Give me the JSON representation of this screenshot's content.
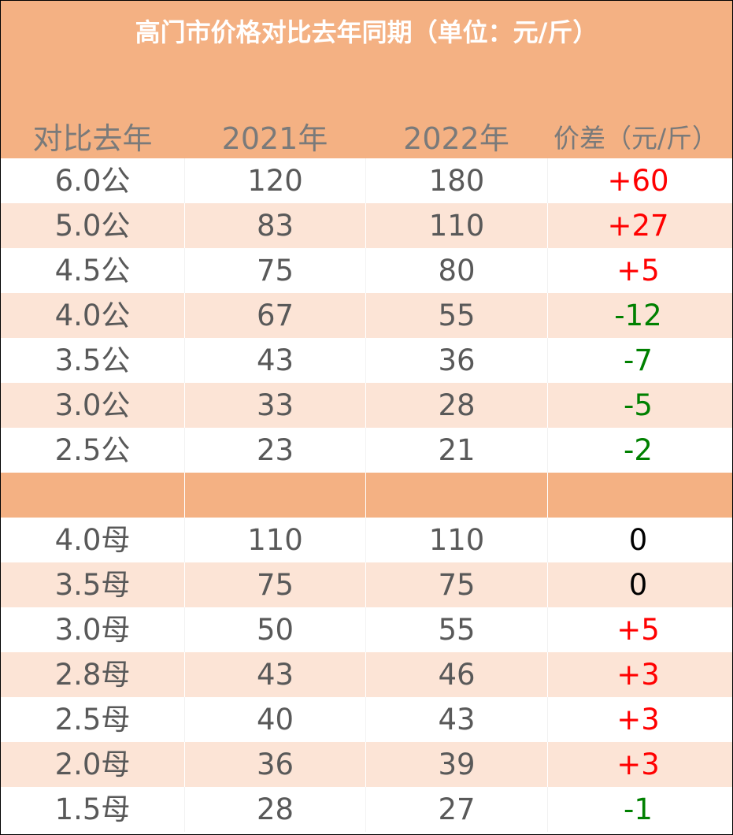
{
  "table": {
    "title": "高门市价格对比去年同期（单位：元/斤）",
    "headers": [
      "对比去年",
      "2021年",
      "2022年",
      "价差（元/斤）"
    ],
    "colors": {
      "header_bg": "#F4B183",
      "band_bg": "#FCE4D6",
      "positive": "#FF0000",
      "negative": "#008000",
      "zero": "#000000"
    },
    "male_rows": [
      {
        "grade": "6.0公",
        "y2021": "120",
        "y2022": "180",
        "diff": "+60"
      },
      {
        "grade": "5.0公",
        "y2021": "83",
        "y2022": "110",
        "diff": "+27"
      },
      {
        "grade": "4.5公",
        "y2021": "75",
        "y2022": "80",
        "diff": "+5"
      },
      {
        "grade": "4.0公",
        "y2021": "67",
        "y2022": "55",
        "diff": "-12"
      },
      {
        "grade": "3.5公",
        "y2021": "43",
        "y2022": "36",
        "diff": "-7"
      },
      {
        "grade": "3.0公",
        "y2021": "33",
        "y2022": "28",
        "diff": "-5"
      },
      {
        "grade": "2.5公",
        "y2021": "23",
        "y2022": "21",
        "diff": "-2"
      }
    ],
    "female_rows": [
      {
        "grade": "4.0母",
        "y2021": "110",
        "y2022": "110",
        "diff": "0"
      },
      {
        "grade": "3.5母",
        "y2021": "75",
        "y2022": "75",
        "diff": "0"
      },
      {
        "grade": "3.0母",
        "y2021": "50",
        "y2022": "55",
        "diff": "+5"
      },
      {
        "grade": "2.8母",
        "y2021": "43",
        "y2022": "46",
        "diff": "+3"
      },
      {
        "grade": "2.5母",
        "y2021": "40",
        "y2022": "43",
        "diff": "+3"
      },
      {
        "grade": "2.0母",
        "y2021": "36",
        "y2022": "39",
        "diff": "+3"
      },
      {
        "grade": "1.5母",
        "y2021": "28",
        "y2022": "27",
        "diff": "-1"
      }
    ]
  }
}
